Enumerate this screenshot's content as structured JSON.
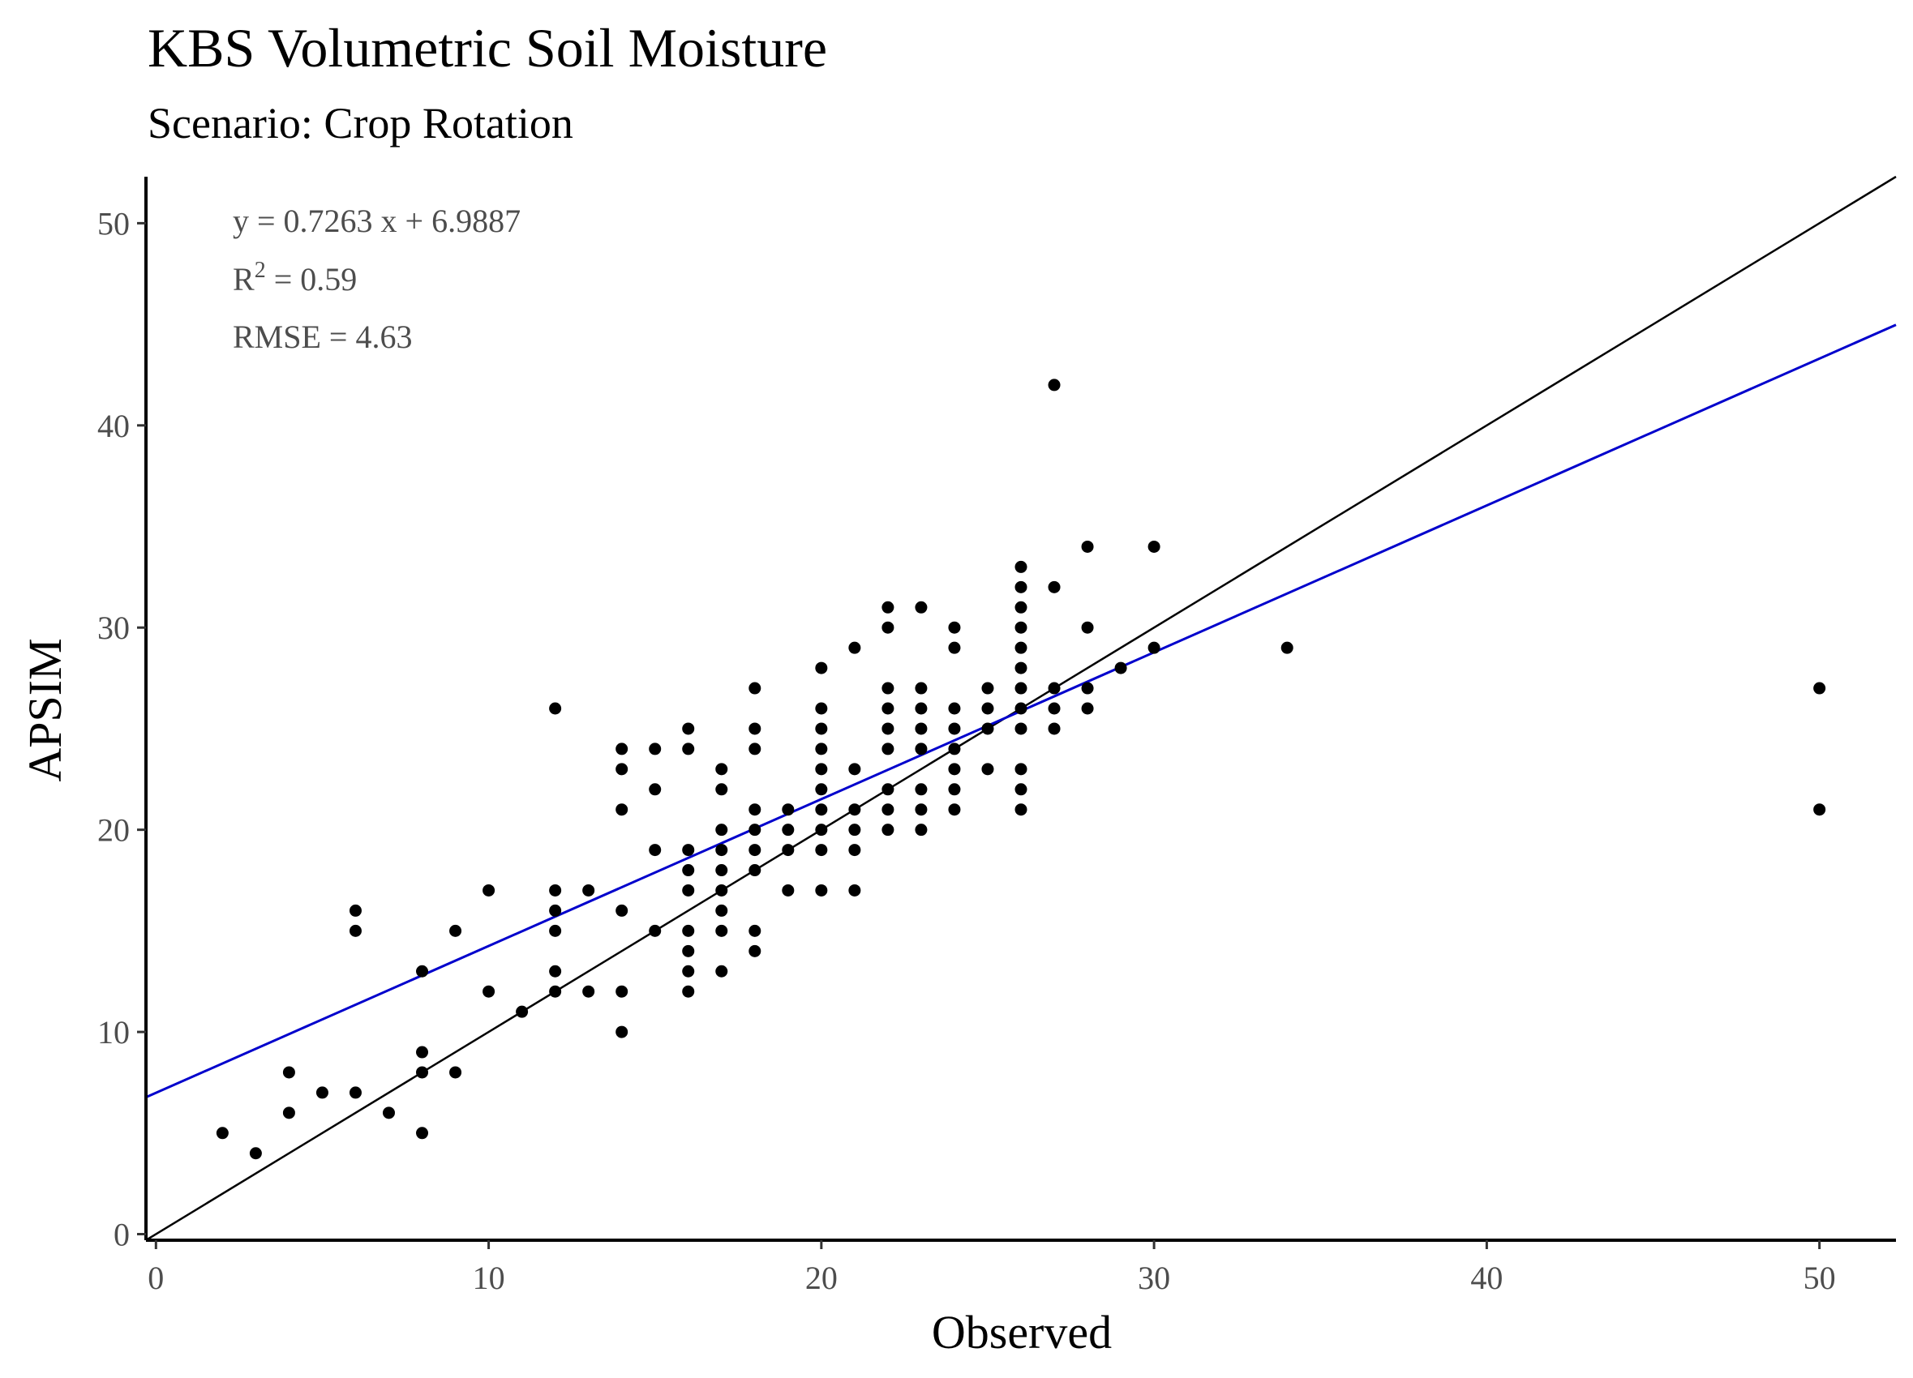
{
  "chart_data": {
    "type": "scatter",
    "title": "KBS Volumetric Soil Moisture",
    "subtitle": "Scenario: Crop Rotation",
    "xlabel": "Observed",
    "ylabel": "APSIM",
    "xlim": [
      -0.3,
      52.3
    ],
    "ylim": [
      -0.3,
      52.3
    ],
    "xticks": [
      0,
      10,
      20,
      30,
      40,
      50
    ],
    "yticks": [
      0,
      10,
      20,
      30,
      40,
      50
    ],
    "grid": false,
    "point_color": "#000000",
    "annotations": {
      "equation": "y = 0.7263 x +  6.9887",
      "r2_label": "R",
      "r2_sup": "2",
      "r2_value": " = 0.59",
      "rmse": "RMSE = 4.63"
    },
    "fit_line": {
      "slope": 0.7263,
      "intercept": 6.9887,
      "color": "#0000cc"
    },
    "identity_line": {
      "slope": 1,
      "intercept": 0,
      "color": "#000000"
    },
    "points": [
      [
        2,
        5
      ],
      [
        3,
        4
      ],
      [
        4,
        8
      ],
      [
        4,
        6
      ],
      [
        5,
        7
      ],
      [
        6,
        16
      ],
      [
        6,
        15
      ],
      [
        6,
        7
      ],
      [
        7,
        6
      ],
      [
        8,
        13
      ],
      [
        8,
        9
      ],
      [
        8,
        8
      ],
      [
        8,
        5
      ],
      [
        9,
        15
      ],
      [
        9,
        8
      ],
      [
        10,
        17
      ],
      [
        10,
        12
      ],
      [
        11,
        11
      ],
      [
        12,
        26
      ],
      [
        12,
        17
      ],
      [
        12,
        16
      ],
      [
        12,
        15
      ],
      [
        12,
        13
      ],
      [
        12,
        12
      ],
      [
        13,
        17
      ],
      [
        13,
        12
      ],
      [
        14,
        24
      ],
      [
        14,
        23
      ],
      [
        14,
        21
      ],
      [
        14,
        16
      ],
      [
        14,
        12
      ],
      [
        14,
        10
      ],
      [
        15,
        24
      ],
      [
        15,
        22
      ],
      [
        15,
        19
      ],
      [
        15,
        15
      ],
      [
        16,
        25
      ],
      [
        16,
        24
      ],
      [
        16,
        19
      ],
      [
        16,
        18
      ],
      [
        16,
        17
      ],
      [
        16,
        15
      ],
      [
        16,
        14
      ],
      [
        16,
        13
      ],
      [
        16,
        12
      ],
      [
        17,
        23
      ],
      [
        17,
        22
      ],
      [
        17,
        20
      ],
      [
        17,
        19
      ],
      [
        17,
        18
      ],
      [
        17,
        17
      ],
      [
        17,
        16
      ],
      [
        17,
        15
      ],
      [
        17,
        13
      ],
      [
        18,
        27
      ],
      [
        18,
        25
      ],
      [
        18,
        24
      ],
      [
        18,
        21
      ],
      [
        18,
        20
      ],
      [
        18,
        19
      ],
      [
        18,
        18
      ],
      [
        18,
        15
      ],
      [
        18,
        14
      ],
      [
        19,
        21
      ],
      [
        19,
        20
      ],
      [
        19,
        19
      ],
      [
        19,
        17
      ],
      [
        20,
        28
      ],
      [
        20,
        26
      ],
      [
        20,
        25
      ],
      [
        20,
        24
      ],
      [
        20,
        23
      ],
      [
        20,
        22
      ],
      [
        20,
        21
      ],
      [
        20,
        20
      ],
      [
        20,
        19
      ],
      [
        20,
        17
      ],
      [
        21,
        29
      ],
      [
        21,
        23
      ],
      [
        21,
        21
      ],
      [
        21,
        20
      ],
      [
        21,
        19
      ],
      [
        21,
        17
      ],
      [
        22,
        31
      ],
      [
        22,
        30
      ],
      [
        22,
        27
      ],
      [
        22,
        26
      ],
      [
        22,
        25
      ],
      [
        22,
        24
      ],
      [
        22,
        22
      ],
      [
        22,
        21
      ],
      [
        22,
        20
      ],
      [
        23,
        31
      ],
      [
        23,
        27
      ],
      [
        23,
        26
      ],
      [
        23,
        25
      ],
      [
        23,
        24
      ],
      [
        23,
        22
      ],
      [
        23,
        21
      ],
      [
        23,
        20
      ],
      [
        24,
        30
      ],
      [
        24,
        29
      ],
      [
        24,
        26
      ],
      [
        24,
        25
      ],
      [
        24,
        24
      ],
      [
        24,
        23
      ],
      [
        24,
        22
      ],
      [
        24,
        21
      ],
      [
        25,
        27
      ],
      [
        25,
        26
      ],
      [
        25,
        25
      ],
      [
        25,
        23
      ],
      [
        26,
        33
      ],
      [
        26,
        32
      ],
      [
        26,
        31
      ],
      [
        26,
        30
      ],
      [
        26,
        29
      ],
      [
        26,
        28
      ],
      [
        26,
        27
      ],
      [
        26,
        26
      ],
      [
        26,
        25
      ],
      [
        26,
        23
      ],
      [
        26,
        22
      ],
      [
        26,
        21
      ],
      [
        27,
        42
      ],
      [
        27,
        32
      ],
      [
        27,
        27
      ],
      [
        27,
        26
      ],
      [
        27,
        25
      ],
      [
        28,
        34
      ],
      [
        28,
        30
      ],
      [
        28,
        27
      ],
      [
        28,
        26
      ],
      [
        29,
        28
      ],
      [
        30,
        34
      ],
      [
        30,
        29
      ],
      [
        34,
        29
      ],
      [
        50,
        27
      ],
      [
        50,
        21
      ]
    ]
  }
}
